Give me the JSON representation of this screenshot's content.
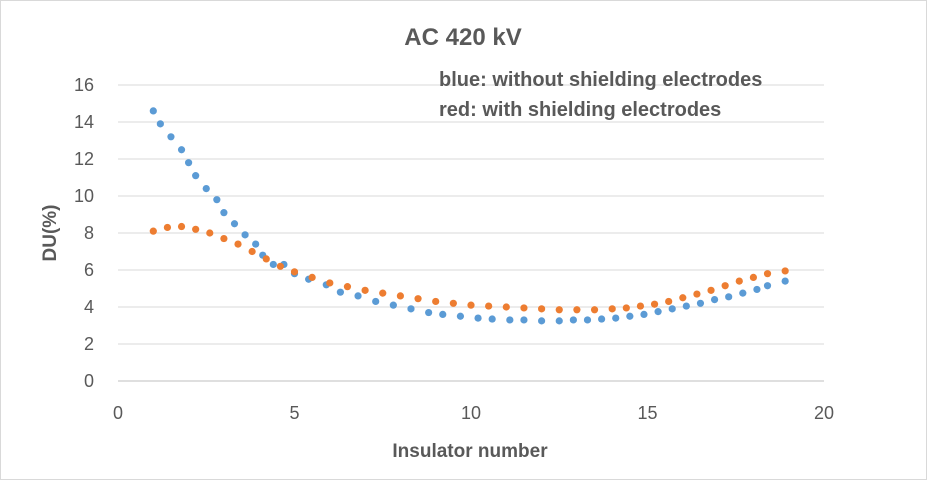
{
  "chart_data": {
    "type": "scatter",
    "title": "AC 420 kV",
    "xlabel": "Insulator number",
    "ylabel": "DU(%)",
    "xlim": [
      0,
      20
    ],
    "ylim": [
      0,
      16
    ],
    "x_ticks": [
      "0",
      "5",
      "10",
      "15",
      "20"
    ],
    "y_ticks": [
      "0",
      "2",
      "4",
      "6",
      "8",
      "10",
      "12",
      "14",
      "16"
    ],
    "grid": "horizontal",
    "annotations": [
      "blue: without shielding electrodes",
      "red: with shielding electrodes"
    ],
    "series": [
      {
        "color": "#5b9bd5",
        "x": [
          1.0,
          1.2,
          1.5,
          1.8,
          2.0,
          2.2,
          2.5,
          2.8,
          3.0,
          3.3,
          3.6,
          3.9,
          4.1,
          4.4,
          4.7,
          5.0,
          5.4,
          5.9,
          6.3,
          6.8,
          7.3,
          7.8,
          8.3,
          8.8,
          9.2,
          9.7,
          10.2,
          10.6,
          11.1,
          11.5,
          12.0,
          12.5,
          12.9,
          13.3,
          13.7,
          14.1,
          14.5,
          14.9,
          15.3,
          15.7,
          16.1,
          16.5,
          16.9,
          17.3,
          17.7,
          18.1,
          18.4,
          18.9
        ],
        "y": [
          14.6,
          13.9,
          13.2,
          12.5,
          11.8,
          11.1,
          10.4,
          9.8,
          9.1,
          8.5,
          7.9,
          7.4,
          6.8,
          6.3,
          6.3,
          5.8,
          5.5,
          5.2,
          4.8,
          4.6,
          4.3,
          4.1,
          3.9,
          3.7,
          3.6,
          3.5,
          3.4,
          3.35,
          3.3,
          3.3,
          3.25,
          3.25,
          3.3,
          3.3,
          3.35,
          3.4,
          3.5,
          3.6,
          3.75,
          3.9,
          4.05,
          4.2,
          4.4,
          4.55,
          4.75,
          4.95,
          5.15,
          5.4
        ]
      },
      {
        "color": "#ed7d31",
        "x": [
          1.0,
          1.4,
          1.8,
          2.2,
          2.6,
          3.0,
          3.4,
          3.8,
          4.2,
          4.6,
          5.0,
          5.5,
          6.0,
          6.5,
          7.0,
          7.5,
          8.0,
          8.5,
          9.0,
          9.5,
          10.0,
          10.5,
          11.0,
          11.5,
          12.0,
          12.5,
          13.0,
          13.5,
          14.0,
          14.4,
          14.8,
          15.2,
          15.6,
          16.0,
          16.4,
          16.8,
          17.2,
          17.6,
          18.0,
          18.4,
          18.9
        ],
        "y": [
          8.1,
          8.3,
          8.35,
          8.2,
          8.0,
          7.7,
          7.4,
          7.0,
          6.6,
          6.2,
          5.9,
          5.6,
          5.3,
          5.1,
          4.9,
          4.75,
          4.6,
          4.45,
          4.3,
          4.2,
          4.1,
          4.05,
          4.0,
          3.95,
          3.9,
          3.85,
          3.85,
          3.85,
          3.9,
          3.95,
          4.05,
          4.15,
          4.3,
          4.5,
          4.7,
          4.9,
          5.15,
          5.4,
          5.6,
          5.8,
          5.95
        ]
      }
    ]
  }
}
